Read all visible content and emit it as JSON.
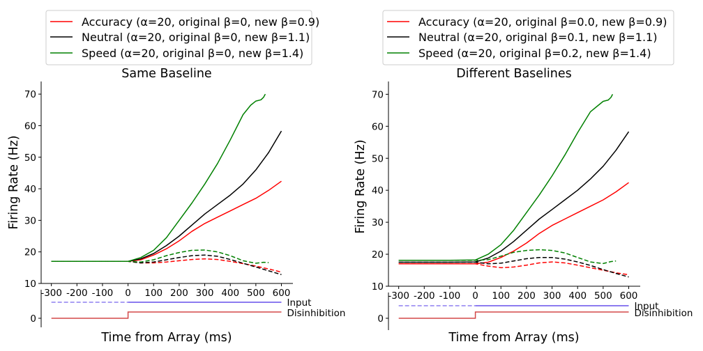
{
  "chart_data": [
    {
      "type": "line",
      "title": "Same Baseline",
      "xlabel": "Time from Array (ms)",
      "ylabel": "Firing Rate (Hz)",
      "xlim": [
        -340,
        645
      ],
      "ylim": [
        10,
        74
      ],
      "xticks": [
        -300,
        -200,
        -100,
        0,
        100,
        200,
        300,
        400,
        500,
        600
      ],
      "xtick_labels": [
        "-300",
        "-200",
        "-100",
        "0",
        "100",
        "200",
        "300",
        "400",
        "500",
        "600"
      ],
      "yticks": [
        10,
        20,
        30,
        40,
        50,
        60,
        70
      ],
      "ytick_labels": [
        "10",
        "20",
        "30",
        "40",
        "50",
        "60",
        "70"
      ],
      "inset_ytick_label": "0",
      "legend": {
        "placement": "above-plot",
        "entries": [
          {
            "label": "Accuracy (α=20, original β=0, new β=0.9)",
            "color": "#ff0000"
          },
          {
            "label": "Neutral (α=20, original β=0, new β=1.1)",
            "color": "#000000"
          },
          {
            "label": "Speed (α=20, original β=0, new β=1.4)",
            "color": "#008000"
          }
        ]
      },
      "series": [
        {
          "color": "#ff0000",
          "style": "solid",
          "x": [
            -300,
            -200,
            -100,
            0,
            50,
            100,
            150,
            200,
            250,
            300,
            350,
            400,
            450,
            500,
            550,
            600
          ],
          "y": [
            17.0,
            17.0,
            17.0,
            17.0,
            17.5,
            19.0,
            21.0,
            23.5,
            26.5,
            29.0,
            31.0,
            33.0,
            35.0,
            37.0,
            39.5,
            42.4
          ]
        },
        {
          "color": "#000000",
          "style": "solid",
          "x": [
            -300,
            -200,
            -100,
            0,
            50,
            100,
            150,
            200,
            250,
            300,
            350,
            400,
            450,
            500,
            550,
            600
          ],
          "y": [
            17.0,
            17.0,
            17.0,
            17.0,
            17.8,
            19.5,
            22.0,
            25.0,
            28.5,
            32.0,
            35.0,
            38.0,
            41.5,
            46.0,
            51.5,
            58.3
          ]
        },
        {
          "color": "#008000",
          "style": "solid",
          "x": [
            -300,
            -200,
            -100,
            0,
            50,
            100,
            150,
            200,
            250,
            300,
            350,
            400,
            450,
            480,
            500,
            520,
            530,
            537
          ],
          "y": [
            17.0,
            17.0,
            17.0,
            17.0,
            18.2,
            20.5,
            24.5,
            30.0,
            35.5,
            41.5,
            48.0,
            55.5,
            63.5,
            66.5,
            67.8,
            68.2,
            69.0,
            70.0
          ]
        },
        {
          "color": "#ff0000",
          "style": "dashed",
          "x": [
            -300,
            -200,
            -100,
            0,
            50,
            100,
            150,
            200,
            250,
            300,
            350,
            400,
            450,
            500,
            550,
            600
          ],
          "y": [
            17.0,
            17.0,
            17.0,
            17.0,
            16.5,
            16.5,
            16.8,
            17.2,
            17.6,
            17.8,
            17.6,
            17.0,
            16.3,
            15.5,
            14.6,
            13.6
          ]
        },
        {
          "color": "#000000",
          "style": "dashed",
          "x": [
            -300,
            -200,
            -100,
            0,
            50,
            100,
            150,
            200,
            250,
            300,
            350,
            400,
            450,
            500,
            550,
            600
          ],
          "y": [
            17.0,
            17.0,
            17.0,
            17.0,
            16.5,
            16.8,
            17.5,
            18.2,
            18.8,
            19.0,
            18.6,
            17.6,
            16.4,
            15.2,
            14.0,
            12.8
          ]
        },
        {
          "color": "#008000",
          "style": "dashed",
          "x": [
            -300,
            -200,
            -100,
            0,
            50,
            100,
            150,
            200,
            250,
            300,
            350,
            400,
            450,
            500,
            530,
            550
          ],
          "y": [
            17.0,
            17.0,
            17.0,
            17.0,
            16.8,
            17.5,
            18.8,
            19.8,
            20.5,
            20.6,
            20.0,
            18.8,
            17.2,
            16.4,
            16.7,
            16.6
          ]
        }
      ],
      "inset": {
        "labels": [
          "Input",
          "Disinhibition"
        ],
        "input": {
          "color": "#7b68ee",
          "x_dashed": [
            -300,
            0
          ],
          "x_solid": [
            0,
            600
          ],
          "level": 1
        },
        "disinhibition": {
          "color": "#cd3333",
          "x": [
            -300,
            0,
            0,
            600
          ],
          "y": [
            0,
            0,
            0.45,
            0.45
          ]
        }
      }
    },
    {
      "type": "line",
      "title": "Different Baselines",
      "xlabel": "Time from Array (ms)",
      "ylabel": "Firing Rate (Hz)",
      "xlim": [
        -340,
        645
      ],
      "ylim": [
        10,
        74
      ],
      "xticks": [
        -300,
        -200,
        -100,
        0,
        100,
        200,
        300,
        400,
        500,
        600
      ],
      "xtick_labels": [
        "-300",
        "-200",
        "-100",
        "0",
        "100",
        "200",
        "300",
        "400",
        "500",
        "600"
      ],
      "yticks": [
        10,
        20,
        30,
        40,
        50,
        60,
        70
      ],
      "ytick_labels": [
        "10",
        "20",
        "30",
        "40",
        "50",
        "60",
        "70"
      ],
      "inset_ytick_label": "0",
      "legend": {
        "placement": "above-plot",
        "entries": [
          {
            "label": "Accuracy (α=20, original β=0.0, new β=0.9)",
            "color": "#ff0000"
          },
          {
            "label": "Neutral (α=20, original β=0.1, new β=1.1)",
            "color": "#000000"
          },
          {
            "label": "Speed (α=20, original β=0.2, new β=1.4)",
            "color": "#008000"
          }
        ]
      },
      "series": [
        {
          "color": "#ff0000",
          "style": "solid",
          "x": [
            -300,
            -200,
            -100,
            0,
            50,
            100,
            150,
            200,
            250,
            300,
            350,
            400,
            450,
            500,
            550,
            600
          ],
          "y": [
            17.0,
            17.0,
            17.0,
            17.0,
            17.5,
            19.0,
            21.0,
            23.5,
            26.5,
            29.0,
            31.0,
            33.0,
            35.0,
            37.0,
            39.5,
            42.4
          ]
        },
        {
          "color": "#000000",
          "style": "solid",
          "x": [
            -300,
            -200,
            -100,
            0,
            50,
            100,
            150,
            200,
            250,
            300,
            350,
            400,
            450,
            500,
            550,
            600
          ],
          "y": [
            17.5,
            17.5,
            17.5,
            17.6,
            18.8,
            21.0,
            24.0,
            27.5,
            31.0,
            34.0,
            37.0,
            40.0,
            43.5,
            47.5,
            52.5,
            58.3
          ]
        },
        {
          "color": "#008000",
          "style": "solid",
          "x": [
            -300,
            -200,
            -100,
            0,
            50,
            100,
            150,
            200,
            250,
            300,
            350,
            400,
            450,
            480,
            500,
            520,
            530,
            537
          ],
          "y": [
            18.1,
            18.1,
            18.1,
            18.2,
            20.0,
            23.0,
            27.5,
            33.0,
            38.5,
            44.5,
            51.0,
            58.0,
            64.5,
            66.5,
            67.8,
            68.2,
            69.0,
            70.0
          ]
        },
        {
          "color": "#ff0000",
          "style": "dashed",
          "x": [
            -300,
            -200,
            -100,
            0,
            50,
            100,
            150,
            200,
            250,
            300,
            350,
            400,
            450,
            500,
            550,
            600
          ],
          "y": [
            17.0,
            17.0,
            17.0,
            17.0,
            16.3,
            15.8,
            16.0,
            16.6,
            17.3,
            17.6,
            17.3,
            16.6,
            15.8,
            15.0,
            14.2,
            13.6
          ]
        },
        {
          "color": "#000000",
          "style": "dashed",
          "x": [
            -300,
            -200,
            -100,
            0,
            50,
            100,
            150,
            200,
            250,
            300,
            350,
            400,
            450,
            500,
            550,
            600
          ],
          "y": [
            17.5,
            17.5,
            17.5,
            17.5,
            17.0,
            17.2,
            17.9,
            18.6,
            19.0,
            19.0,
            18.5,
            17.6,
            16.5,
            15.2,
            14.0,
            12.9
          ]
        },
        {
          "color": "#008000",
          "style": "dashed",
          "x": [
            -300,
            -200,
            -100,
            0,
            50,
            100,
            150,
            200,
            250,
            300,
            350,
            400,
            450,
            500,
            530,
            550
          ],
          "y": [
            18.1,
            18.1,
            18.1,
            18.1,
            18.3,
            19.4,
            20.6,
            21.2,
            21.4,
            21.2,
            20.4,
            19.0,
            17.6,
            17.1,
            17.7,
            17.9
          ]
        }
      ],
      "inset": {
        "labels": [
          "Input",
          "Disinhibition"
        ],
        "input": {
          "color": "#7b68ee",
          "x_dashed": [
            -300,
            0
          ],
          "x_solid": [
            0,
            600
          ],
          "level": 1
        },
        "disinhibition": {
          "color": "#cd3333",
          "x": [
            -300,
            0,
            0,
            600
          ],
          "y": [
            0,
            0,
            0.45,
            0.45
          ]
        }
      }
    }
  ]
}
